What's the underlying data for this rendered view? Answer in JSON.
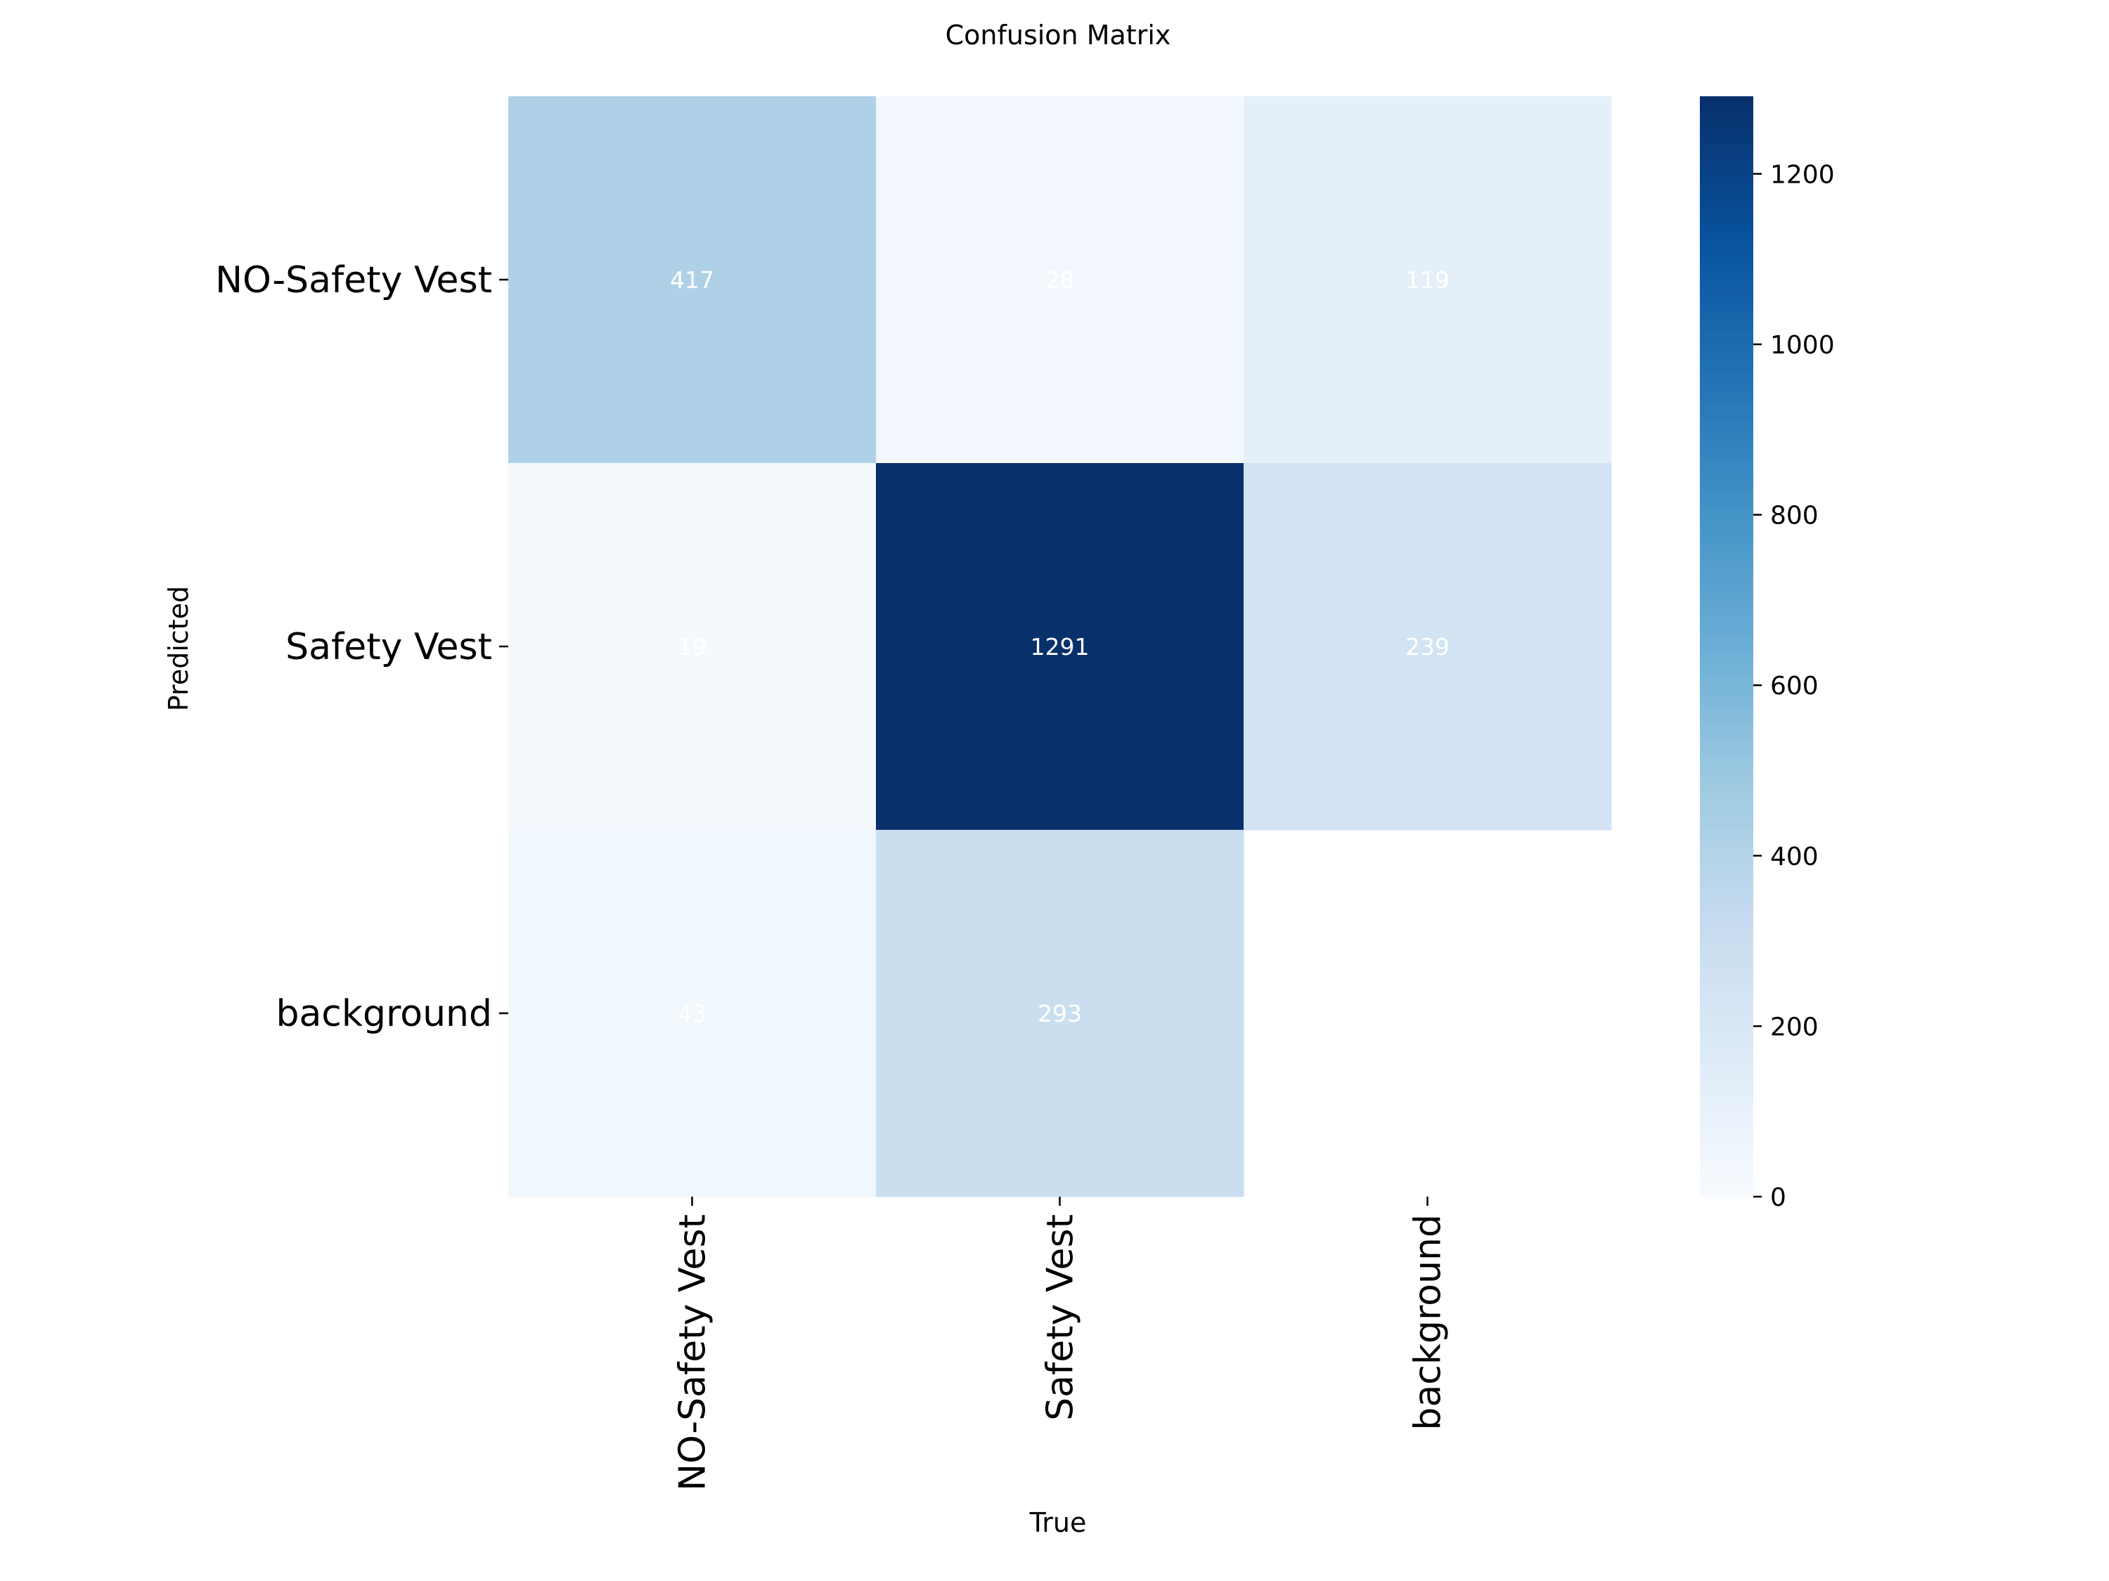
{
  "chart_data": {
    "type": "heatmap",
    "title": "Confusion Matrix",
    "xlabel": "True",
    "ylabel": "Predicted",
    "x_categories": [
      "NO-Safety Vest",
      "Safety Vest",
      "background"
    ],
    "y_categories": [
      "NO-Safety Vest",
      "Safety Vest",
      "background"
    ],
    "matrix": [
      [
        417,
        28,
        119
      ],
      [
        19,
        1291,
        239
      ],
      [
        43,
        293,
        null
      ]
    ],
    "cell_labels": [
      [
        "417",
        "28",
        "119"
      ],
      [
        "19",
        "1291",
        "239"
      ],
      [
        "43",
        "293",
        ""
      ]
    ],
    "colorbar": {
      "min": 0,
      "max": 1291,
      "ticks": [
        0,
        200,
        400,
        600,
        800,
        1000,
        1200
      ],
      "tick_labels": [
        "0",
        "200",
        "400",
        "600",
        "800",
        "1000",
        "1200"
      ]
    },
    "colormap": "Blues",
    "grid": false,
    "legend": "colorbar-right"
  }
}
